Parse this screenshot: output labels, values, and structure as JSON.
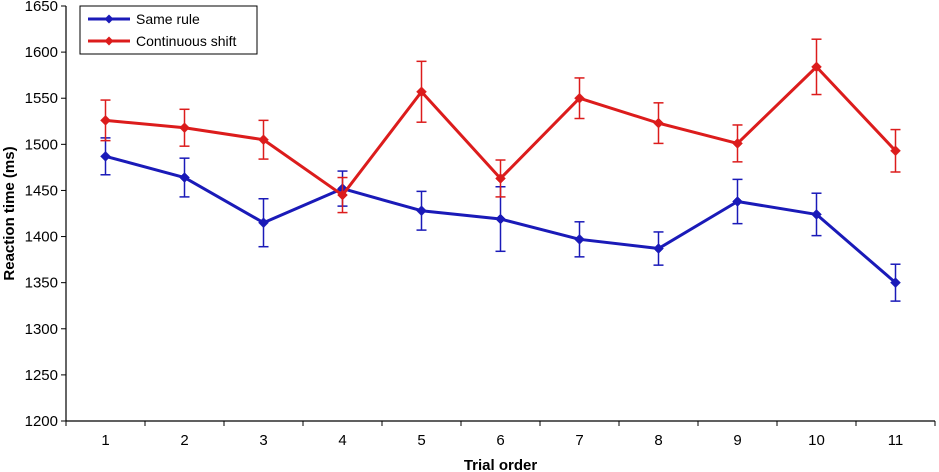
{
  "chart_data": {
    "type": "line",
    "title": "",
    "xlabel": "Trial order",
    "ylabel": "Reaction time (ms)",
    "categories": [
      "1",
      "2",
      "3",
      "4",
      "5",
      "6",
      "7",
      "8",
      "9",
      "10",
      "11"
    ],
    "ylim": [
      1200,
      1650
    ],
    "yticks": [
      1200,
      1250,
      1300,
      1350,
      1400,
      1450,
      1500,
      1550,
      1600,
      1650
    ],
    "grid": false,
    "legend_position": "top-left",
    "error_bars": true,
    "series": [
      {
        "name": "Same rule",
        "color": "#1a1ab8",
        "values": [
          1487,
          1464,
          1415,
          1452,
          1428,
          1419,
          1397,
          1387,
          1438,
          1424,
          1350
        ],
        "errors": [
          20,
          21,
          26,
          19,
          21,
          35,
          19,
          18,
          24,
          23,
          20
        ]
      },
      {
        "name": "Continuous shift",
        "color": "#dc1c1c",
        "values": [
          1526,
          1518,
          1505,
          1445,
          1557,
          1463,
          1550,
          1523,
          1501,
          1584,
          1493
        ],
        "errors": [
          22,
          20,
          21,
          19,
          33,
          20,
          22,
          22,
          20,
          30,
          23
        ]
      }
    ]
  }
}
